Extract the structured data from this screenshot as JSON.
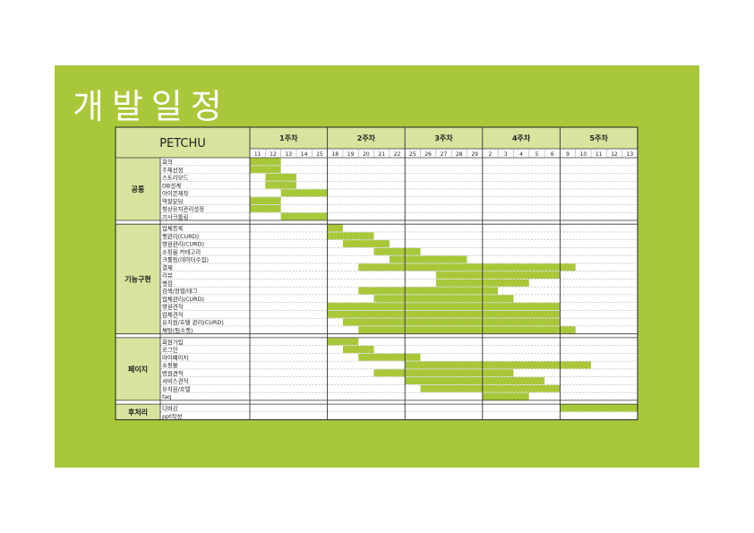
{
  "title": "개발일정",
  "project": "PETCHU",
  "weeks": [
    {
      "label": "1주차",
      "days": [
        "11",
        "12",
        "13",
        "14",
        "15"
      ]
    },
    {
      "label": "2주차",
      "days": [
        "18",
        "19",
        "20",
        "21",
        "22"
      ]
    },
    {
      "label": "3주차",
      "days": [
        "25",
        "26",
        "27",
        "28",
        "29"
      ]
    },
    {
      "label": "4주차",
      "days": [
        "2",
        "3",
        "4",
        "5",
        "6"
      ]
    },
    {
      "label": "5주차",
      "days": [
        "9",
        "10",
        "11",
        "12",
        "13"
      ]
    }
  ],
  "groups": [
    {
      "name": "공통",
      "tasks": [
        {
          "name": "회의",
          "span": [
            0,
            2
          ]
        },
        {
          "name": "주제선정",
          "span": [
            0,
            2
          ]
        },
        {
          "name": "스토리보드",
          "span": [
            1,
            3
          ]
        },
        {
          "name": "DB설계",
          "span": [
            1,
            3
          ]
        },
        {
          "name": "아이콘제작",
          "span": [
            2,
            5
          ]
        },
        {
          "name": "역할분담",
          "span": [
            0,
            2
          ]
        },
        {
          "name": "형상유지관리설정",
          "span": [
            0,
            2
          ]
        },
        {
          "name": "기사크롤링",
          "span": [
            2,
            5
          ]
        }
      ]
    },
    {
      "name": "기능구현",
      "tasks": [
        {
          "name": "업체등록",
          "span": [
            5,
            6
          ]
        },
        {
          "name": "펫관리(CURD)",
          "span": [
            5,
            8
          ]
        },
        {
          "name": "병원관리(CURD)",
          "span": [
            6,
            9
          ]
        },
        {
          "name": "쇼핑몰 카테고리",
          "span": [
            8,
            11
          ]
        },
        {
          "name": "크롤링(데이터수집)",
          "span": [
            9,
            14
          ]
        },
        {
          "name": "결제",
          "span": [
            7,
            21
          ]
        },
        {
          "name": "리뷰",
          "span": [
            12,
            20
          ]
        },
        {
          "name": "별점",
          "span": [
            12,
            18
          ]
        },
        {
          "name": "검색/정렬/태그",
          "span": [
            7,
            16
          ]
        },
        {
          "name": "업체관리(CURD)",
          "span": [
            8,
            17
          ]
        },
        {
          "name": "병원견적",
          "span": [
            5,
            20
          ]
        },
        {
          "name": "업체견적",
          "span": [
            5,
            20
          ]
        },
        {
          "name": "유치원/호텔 관리(CURD)",
          "span": [
            6,
            20
          ]
        },
        {
          "name": "채팅(팀소켓)",
          "span": [
            7,
            21
          ]
        }
      ]
    },
    {
      "name": "페이지",
      "tasks": [
        {
          "name": "회원가입",
          "span": [
            5,
            7
          ]
        },
        {
          "name": "로그인",
          "span": [
            6,
            8
          ]
        },
        {
          "name": "마이페이지",
          "span": [
            7,
            11
          ]
        },
        {
          "name": "쇼핑몰",
          "span": [
            10,
            22
          ]
        },
        {
          "name": "병원견적",
          "span": [
            8,
            17
          ]
        },
        {
          "name": "서비스견적",
          "span": [
            10,
            19
          ]
        },
        {
          "name": "유치원/호텔",
          "span": [
            11,
            20
          ]
        },
        {
          "name": "faq",
          "span": [
            15,
            18
          ]
        }
      ]
    },
    {
      "name": "후처리",
      "tasks": [
        {
          "name": "디버깅",
          "span": [
            20,
            25
          ]
        },
        {
          "name": "ppt작성",
          "span": []
        }
      ]
    }
  ],
  "colors": {
    "slide": "#a8c83a",
    "header": "#d6e49e",
    "bar": "#a8c83a"
  }
}
